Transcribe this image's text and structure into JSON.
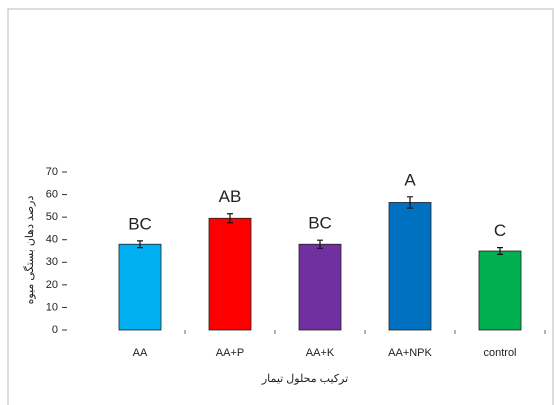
{
  "chart_data": {
    "type": "bar",
    "categories": [
      "AA",
      "AA+P",
      "AA+K",
      "AA+NPK",
      "control"
    ],
    "values": [
      38,
      49.5,
      38,
      56.5,
      35
    ],
    "errors": [
      1.5,
      2,
      1.8,
      2.5,
      1.5
    ],
    "annotations": [
      "BC",
      "AB",
      "BC",
      "A",
      "C"
    ],
    "colors": [
      "#00b0f0",
      "#ff0000",
      "#7030a0",
      "#0070c0",
      "#00b050"
    ],
    "ylabel": "درصد دهان بستگی میوه",
    "xlabel": "ترکیب محلول تیمار",
    "ylim": [
      0,
      70
    ],
    "yticks": [
      0,
      10,
      20,
      30,
      40,
      50,
      60,
      70
    ]
  }
}
